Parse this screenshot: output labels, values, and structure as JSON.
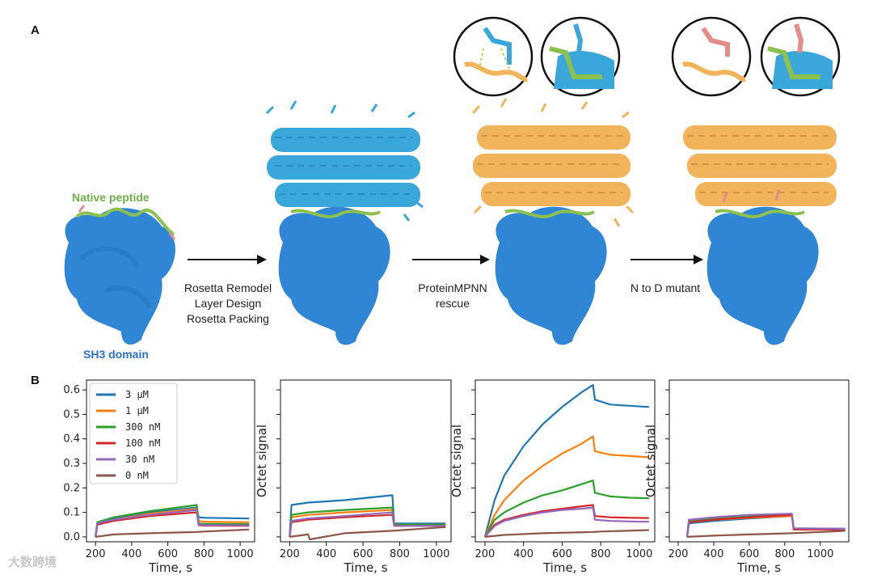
{
  "panels": {
    "a_label": "A",
    "b_label": "B"
  },
  "panel_a": {
    "native_peptide_label": "Native peptide",
    "sh3_label": "SH3 domain",
    "step1_lines": [
      "Rosetta Remodel",
      "Layer Design",
      "Rosetta Packing"
    ],
    "step2_lines": [
      "ProteinMPNN",
      "rescue"
    ],
    "step3_lines": [
      "N to D mutant"
    ],
    "colors": {
      "sh3": "#2f86d4",
      "design_blue": "#3aa7db",
      "design_orange": "#f2b45a",
      "peptide": "#8cc152",
      "pink": "#e48b8b"
    }
  },
  "watermark": "大数跨境",
  "chart_data": [
    {
      "type": "line",
      "title": "",
      "xlabel": "Time, s",
      "ylabel": "",
      "xlim": [
        150,
        1080
      ],
      "ylim": [
        -0.02,
        0.64
      ],
      "x_ticks": [
        200,
        400,
        600,
        800,
        1000
      ],
      "y_ticks": [
        "0.0",
        "0.1",
        "0.2",
        "0.3",
        "0.4",
        "0.5",
        "0.6"
      ],
      "y_tick_values": [
        0.0,
        0.1,
        0.2,
        0.3,
        0.4,
        0.5,
        0.6
      ],
      "legend": [
        "3 μM",
        "1 μM",
        "300 nM",
        "100 nM",
        "30 nM",
        "0 nM"
      ],
      "legend_position": "top-left",
      "series": [
        {
          "name": "3 μM",
          "color": "#1f77b4",
          "x": [
            200,
            210,
            300,
            500,
            760,
            770,
            800,
            1050
          ],
          "y": [
            0.0,
            0.055,
            0.075,
            0.1,
            0.12,
            0.08,
            0.078,
            0.075
          ]
        },
        {
          "name": "1 μM",
          "color": "#ff7f0e",
          "x": [
            200,
            210,
            300,
            500,
            760,
            770,
            800,
            1050
          ],
          "y": [
            0.0,
            0.05,
            0.07,
            0.095,
            0.115,
            0.065,
            0.062,
            0.06
          ]
        },
        {
          "name": "300 nM",
          "color": "#2ca02c",
          "x": [
            200,
            210,
            300,
            500,
            760,
            770,
            800,
            1050
          ],
          "y": [
            0.0,
            0.06,
            0.08,
            0.105,
            0.13,
            0.055,
            0.053,
            0.052
          ]
        },
        {
          "name": "100 nM",
          "color": "#d62728",
          "x": [
            200,
            210,
            300,
            500,
            760,
            770,
            800,
            1050
          ],
          "y": [
            0.0,
            0.05,
            0.065,
            0.085,
            0.1,
            0.048,
            0.046,
            0.045
          ]
        },
        {
          "name": "30 nM",
          "color": "#9467bd",
          "x": [
            200,
            210,
            300,
            500,
            760,
            770,
            800,
            1050
          ],
          "y": [
            0.0,
            0.055,
            0.07,
            0.09,
            0.11,
            0.05,
            0.048,
            0.047
          ]
        },
        {
          "name": "0 nM",
          "color": "#8c564b",
          "x": [
            200,
            300,
            500,
            760,
            800,
            1050
          ],
          "y": [
            0.0,
            0.01,
            0.015,
            0.02,
            0.022,
            0.03
          ]
        }
      ]
    },
    {
      "type": "line",
      "title": "",
      "xlabel": "Time, s",
      "ylabel": "Octet signal",
      "xlim": [
        150,
        1080
      ],
      "ylim": [
        -0.02,
        0.64
      ],
      "x_ticks": [
        200,
        400,
        600,
        800,
        1000
      ],
      "y_ticks": [],
      "series": [
        {
          "name": "3 μM",
          "color": "#1f77b4",
          "x": [
            200,
            210,
            300,
            500,
            760,
            770,
            1050
          ],
          "y": [
            0.0,
            0.13,
            0.14,
            0.15,
            0.17,
            0.055,
            0.055
          ]
        },
        {
          "name": "1 μM",
          "color": "#ff7f0e",
          "x": [
            200,
            210,
            300,
            500,
            760,
            770,
            1050
          ],
          "y": [
            0.0,
            0.08,
            0.09,
            0.1,
            0.11,
            0.05,
            0.05
          ]
        },
        {
          "name": "300 nM",
          "color": "#2ca02c",
          "x": [
            200,
            210,
            300,
            500,
            760,
            770,
            1050
          ],
          "y": [
            0.0,
            0.09,
            0.1,
            0.11,
            0.12,
            0.05,
            0.05
          ]
        },
        {
          "name": "100 nM",
          "color": "#d62728",
          "x": [
            200,
            210,
            300,
            500,
            760,
            770,
            1050
          ],
          "y": [
            0.0,
            0.06,
            0.07,
            0.08,
            0.09,
            0.045,
            0.045
          ]
        },
        {
          "name": "30 nM",
          "color": "#9467bd",
          "x": [
            200,
            210,
            300,
            500,
            760,
            770,
            1050
          ],
          "y": [
            0.0,
            0.065,
            0.075,
            0.085,
            0.1,
            0.045,
            0.045
          ]
        },
        {
          "name": "0 nM",
          "color": "#8c564b",
          "x": [
            200,
            300,
            310,
            500,
            760,
            1050
          ],
          "y": [
            0.0,
            0.01,
            -0.01,
            0.015,
            0.025,
            0.04
          ]
        }
      ]
    },
    {
      "type": "line",
      "title": "",
      "xlabel": "Time, s",
      "ylabel": "Octet signal",
      "xlim": [
        150,
        1080
      ],
      "ylim": [
        -0.02,
        0.64
      ],
      "x_ticks": [
        200,
        400,
        600,
        800,
        1000
      ],
      "y_ticks": [],
      "series": [
        {
          "name": "3 μM",
          "color": "#1f77b4",
          "x": [
            200,
            250,
            300,
            400,
            500,
            600,
            700,
            760,
            770,
            850,
            950,
            1050
          ],
          "y": [
            0.0,
            0.15,
            0.25,
            0.37,
            0.46,
            0.53,
            0.59,
            0.62,
            0.56,
            0.54,
            0.535,
            0.53
          ]
        },
        {
          "name": "1 μM",
          "color": "#ff7f0e",
          "x": [
            200,
            250,
            300,
            400,
            500,
            600,
            700,
            760,
            770,
            850,
            950,
            1050
          ],
          "y": [
            0.0,
            0.09,
            0.15,
            0.23,
            0.29,
            0.34,
            0.38,
            0.41,
            0.35,
            0.335,
            0.33,
            0.325
          ]
        },
        {
          "name": "300 nM",
          "color": "#2ca02c",
          "x": [
            200,
            250,
            300,
            400,
            500,
            600,
            700,
            760,
            770,
            850,
            950,
            1050
          ],
          "y": [
            0.0,
            0.07,
            0.1,
            0.14,
            0.17,
            0.19,
            0.215,
            0.23,
            0.18,
            0.165,
            0.16,
            0.158
          ]
        },
        {
          "name": "100 nM",
          "color": "#d62728",
          "x": [
            200,
            250,
            300,
            400,
            500,
            600,
            700,
            760,
            770,
            850,
            950,
            1050
          ],
          "y": [
            0.0,
            0.05,
            0.07,
            0.09,
            0.105,
            0.115,
            0.125,
            0.13,
            0.085,
            0.08,
            0.078,
            0.077
          ]
        },
        {
          "name": "30 nM",
          "color": "#9467bd",
          "x": [
            200,
            250,
            300,
            400,
            500,
            600,
            700,
            760,
            770,
            850,
            950,
            1050
          ],
          "y": [
            0.0,
            0.045,
            0.065,
            0.085,
            0.1,
            0.11,
            0.115,
            0.12,
            0.07,
            0.065,
            0.063,
            0.062
          ]
        },
        {
          "name": "0 nM",
          "color": "#8c564b",
          "x": [
            200,
            300,
            500,
            760,
            800,
            1050
          ],
          "y": [
            0.0,
            0.008,
            0.015,
            0.02,
            0.022,
            0.028
          ]
        }
      ]
    },
    {
      "type": "line",
      "title": "",
      "xlabel": "Time, s",
      "ylabel": "Octet signal",
      "xlim": [
        150,
        1160
      ],
      "ylim": [
        -0.02,
        0.64
      ],
      "x_ticks": [
        200,
        400,
        600,
        800,
        1000
      ],
      "y_ticks": [],
      "series": [
        {
          "name": "3 μM",
          "color": "#1f77b4",
          "x": [
            250,
            260,
            400,
            600,
            840,
            850,
            1000,
            1140
          ],
          "y": [
            0.0,
            0.055,
            0.065,
            0.075,
            0.085,
            0.035,
            0.034,
            0.033
          ]
        },
        {
          "name": "1 μM",
          "color": "#ff7f0e",
          "x": [
            250,
            260,
            400,
            600,
            840,
            850,
            1000,
            1140
          ],
          "y": [
            0.0,
            0.06,
            0.07,
            0.078,
            0.085,
            0.03,
            0.03,
            0.03
          ]
        },
        {
          "name": "300 nM",
          "color": "#2ca02c",
          "x": [
            250,
            260,
            400,
            600,
            840,
            850,
            1000,
            1140
          ],
          "y": [
            0.0,
            0.065,
            0.075,
            0.085,
            0.09,
            0.032,
            0.031,
            0.03
          ]
        },
        {
          "name": "100 nM",
          "color": "#d62728",
          "x": [
            250,
            260,
            400,
            600,
            840,
            850,
            1000,
            1140
          ],
          "y": [
            0.0,
            0.06,
            0.07,
            0.08,
            0.09,
            0.03,
            0.03,
            0.029
          ]
        },
        {
          "name": "30 nM",
          "color": "#9467bd",
          "x": [
            250,
            260,
            400,
            600,
            840,
            850,
            1000,
            1140
          ],
          "y": [
            0.0,
            0.07,
            0.08,
            0.09,
            0.095,
            0.035,
            0.034,
            0.033
          ]
        },
        {
          "name": "0 nM",
          "color": "#8c564b",
          "x": [
            250,
            400,
            600,
            840,
            1000,
            1140
          ],
          "y": [
            0.0,
            0.005,
            0.01,
            0.015,
            0.02,
            0.025
          ]
        }
      ]
    }
  ]
}
